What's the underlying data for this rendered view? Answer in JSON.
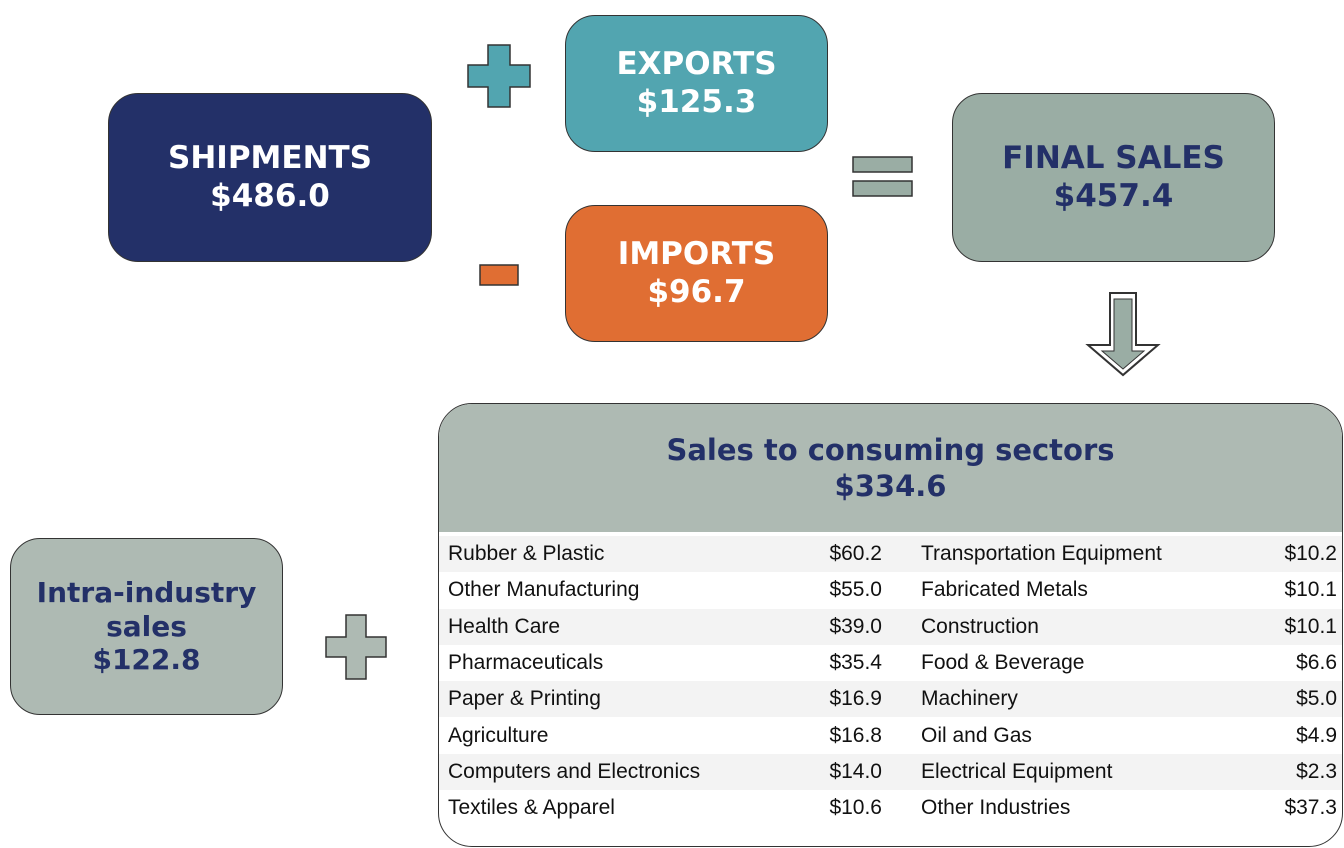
{
  "nodes": {
    "shipments": {
      "label": "SHIPMENTS",
      "value": "$486.0"
    },
    "exports": {
      "label": "EXPORTS",
      "value": "$125.3"
    },
    "imports": {
      "label": "IMPORTS",
      "value": "$96.7"
    },
    "final_sales": {
      "label": "FINAL SALES",
      "value": "$457.4"
    },
    "intra": {
      "label": "Intra-industry sales",
      "value": "$122.8"
    },
    "consuming": {
      "label": "Sales to consuming sectors",
      "value": "$334.6"
    }
  },
  "table": {
    "rows": [
      [
        "Rubber & Plastic",
        "$60.2",
        "Transportation Equipment",
        "$10.2"
      ],
      [
        "Other Manufacturing",
        "$55.0",
        "Fabricated Metals",
        "$10.1"
      ],
      [
        "Health Care",
        "$39.0",
        "Construction",
        "$10.1"
      ],
      [
        "Pharmaceuticals",
        "$35.4",
        "Food & Beverage",
        "$6.6"
      ],
      [
        "Paper & Printing",
        "$16.9",
        "Machinery",
        "$5.0"
      ],
      [
        "Agriculture",
        "$16.8",
        "Oil and Gas",
        "$4.9"
      ],
      [
        "Computers and Electronics",
        "$14.0",
        "Electrical Equipment",
        "$2.3"
      ],
      [
        "Textiles & Apparel",
        "$10.6",
        "Other Industries",
        "$37.3"
      ]
    ]
  }
}
